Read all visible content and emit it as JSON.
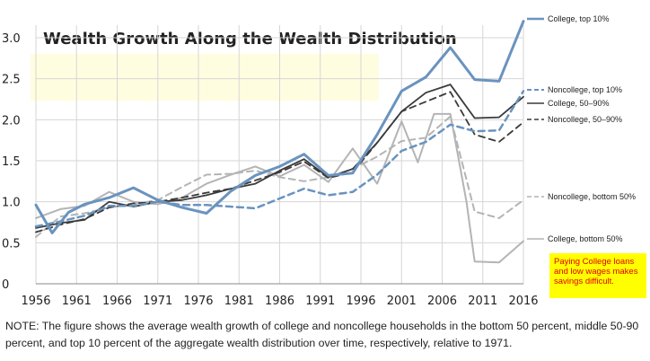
{
  "chart_data": {
    "type": "line",
    "title": "Wealth Growth Along the Wealth Distribution",
    "x_ticks": [
      1956,
      1961,
      1966,
      1971,
      1976,
      1981,
      1986,
      1991,
      1996,
      2001,
      2006,
      2011,
      2016
    ],
    "y_ticks": [
      "0",
      "0.5",
      "1.0",
      "1.5",
      "2.0",
      "2.5",
      "3.0"
    ],
    "xlim": [
      1956,
      2016
    ],
    "ylim": [
      0,
      3.2
    ],
    "grid": true,
    "legend_placement": "right",
    "series": [
      {
        "name": "College, top 10%",
        "color": "#6a93bf",
        "style": "solid",
        "width": 3,
        "x": [
          1956,
          1958,
          1960,
          1962,
          1965,
          1968,
          1971,
          1974,
          1977,
          1980,
          1983,
          1986,
          1989,
          1992,
          1995,
          1998,
          2001,
          2004,
          2007,
          2010,
          2013,
          2016
        ],
        "y": [
          0.96,
          0.62,
          0.87,
          0.97,
          1.05,
          1.17,
          1.02,
          0.93,
          0.86,
          1.13,
          1.32,
          1.43,
          1.58,
          1.32,
          1.35,
          1.82,
          2.35,
          2.52,
          2.88,
          2.49,
          2.47,
          3.2
        ]
      },
      {
        "name": "Noncollege, top 10%",
        "color": "#6a93bf",
        "style": "dashed",
        "width": 2.5,
        "x": [
          1956,
          1959,
          1962,
          1965,
          1968,
          1971,
          1974,
          1977,
          1980,
          1983,
          1986,
          1989,
          1992,
          1995,
          1998,
          2001,
          2004,
          2007,
          2010,
          2013,
          2016
        ],
        "y": [
          0.7,
          0.76,
          0.83,
          0.95,
          0.95,
          1.0,
          0.96,
          0.96,
          0.94,
          0.92,
          1.04,
          1.16,
          1.08,
          1.12,
          1.33,
          1.62,
          1.73,
          1.94,
          1.86,
          1.87,
          2.35
        ]
      },
      {
        "name": "College, 50–90%",
        "color": "#3a3a3a",
        "style": "solid",
        "width": 1.8,
        "x": [
          1956,
          1959,
          1962,
          1965,
          1968,
          1971,
          1974,
          1977,
          1980,
          1983,
          1986,
          1989,
          1992,
          1995,
          1998,
          2001,
          2004,
          2007,
          2010,
          2013,
          2016
        ],
        "y": [
          0.68,
          0.74,
          0.78,
          1.0,
          0.94,
          1.0,
          1.02,
          1.08,
          1.16,
          1.22,
          1.38,
          1.52,
          1.3,
          1.4,
          1.72,
          2.1,
          2.33,
          2.43,
          2.02,
          2.03,
          2.28
        ]
      },
      {
        "name": "Noncollege, 50–90%",
        "color": "#3a3a3a",
        "style": "dashed",
        "width": 1.8,
        "x": [
          1956,
          1959,
          1962,
          1965,
          1968,
          1971,
          1974,
          1977,
          1980,
          1983,
          1986,
          1989,
          1992,
          1995,
          1998,
          2001,
          2004,
          2007,
          2010,
          2013,
          2016
        ],
        "y": [
          0.63,
          0.72,
          0.79,
          0.93,
          0.98,
          1.0,
          1.05,
          1.11,
          1.16,
          1.26,
          1.36,
          1.49,
          1.29,
          1.36,
          1.72,
          2.1,
          2.22,
          2.34,
          1.82,
          1.73,
          1.97
        ]
      },
      {
        "name": "Noncollege, bottom 50%",
        "color": "#b4b4b4",
        "style": "dashed",
        "width": 2,
        "x": [
          1956,
          1959,
          1962,
          1965,
          1968,
          1971,
          1974,
          1977,
          1980,
          1983,
          1986,
          1989,
          1992,
          1995,
          1998,
          2001,
          2004,
          2007,
          2010,
          2013,
          2016
        ],
        "y": [
          0.57,
          0.82,
          0.86,
          0.93,
          0.97,
          1.02,
          1.18,
          1.33,
          1.34,
          1.38,
          1.3,
          1.25,
          1.3,
          1.4,
          1.55,
          1.74,
          1.78,
          2.04,
          0.88,
          0.8,
          1.02
        ]
      },
      {
        "name": "College, bottom 50%",
        "color": "#b4b4b4",
        "style": "solid",
        "width": 2,
        "x": [
          1956,
          1959,
          1962,
          1965,
          1968,
          1971,
          1974,
          1977,
          1980,
          1983,
          1986,
          1989,
          1992,
          1995,
          1998,
          2001,
          2003,
          2005,
          2007,
          2009,
          2010,
          2013,
          2016
        ],
        "y": [
          0.8,
          0.91,
          0.95,
          1.12,
          1.0,
          0.97,
          1.05,
          1.22,
          1.33,
          1.43,
          1.31,
          1.45,
          1.24,
          1.65,
          1.22,
          1.98,
          1.48,
          2.07,
          2.07,
          1.0,
          0.27,
          0.26,
          0.52
        ]
      }
    ]
  },
  "note_box": {
    "line1": "Paying College loans",
    "line2": "and low wages makes",
    "line3": "savings difficult."
  },
  "footnote": "NOTE: The figure shows the average wealth growth of college and noncollege households in the bottom 50 percent, middle 50-90 percent, and top 10 percent of the aggregate wealth distribution over time, respectively, relative to 1971.",
  "colors": {
    "highlight_box": "#fffde0",
    "note_bg": "#ffff00",
    "note_text": "#e00000"
  }
}
